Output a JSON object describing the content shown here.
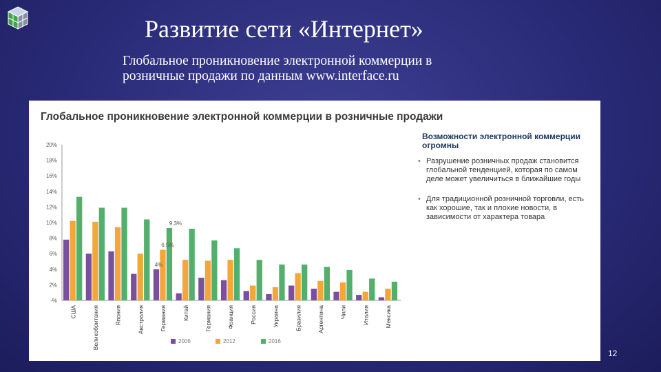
{
  "slide": {
    "title": "Развитие сети «Интернет»",
    "subtitle_lines": [
      "Глобальное проникновение электронной коммерции в",
      "розничные продажи по данным www.interface.ru"
    ],
    "page_number": "12"
  },
  "side_panel": {
    "heading": "Возможности электронной коммерции огромны",
    "bullets": [
      "Разрушение розничных продаж становится глобальной тенденцией, которая по самом деле может увеличиться в ближайшие годы",
      "Для традиционной розничной торговли, есть как хорошие, так и плохие новости, в зависимости от характера товара"
    ]
  },
  "colors": {
    "s2006": "#7b4fa0",
    "s2012": "#f4a63a",
    "s2016": "#52b06c",
    "title_text": "#3a3a3a",
    "side_heading": "#1f3864"
  },
  "chart_data": {
    "type": "bar",
    "title": "Глобальное проникновение электронной коммерции в розничные продажи",
    "categories": [
      "США",
      "Великобритания",
      "Япония",
      "Австралия",
      "Германия",
      "Китай",
      "Германия",
      "Франция",
      "Россия",
      "Украина",
      "Бразилия",
      "Аргентина",
      "Чили",
      "Италия",
      "Мексика"
    ],
    "series": [
      {
        "name": "2006",
        "values": [
          7.8,
          6.0,
          6.3,
          3.4,
          4.0,
          0.9,
          2.9,
          2.6,
          1.2,
          0.8,
          1.9,
          1.5,
          1.1,
          0.7,
          0.4
        ]
      },
      {
        "name": "2012",
        "values": [
          10.2,
          10.1,
          9.4,
          6.0,
          6.5,
          5.2,
          5.1,
          5.2,
          1.9,
          1.7,
          3.5,
          2.5,
          2.3,
          1.1,
          1.5
        ]
      },
      {
        "name": "2016",
        "values": [
          13.3,
          11.9,
          11.9,
          10.4,
          9.3,
          9.2,
          7.7,
          6.7,
          5.2,
          4.6,
          4.6,
          4.3,
          3.9,
          2.8,
          2.4
        ]
      }
    ],
    "annotations": [
      "9.3%",
      "6.5%",
      "4%"
    ],
    "yticks": [
      "20%",
      "18%",
      "16%",
      "14%",
      "12%",
      "10%",
      "8%",
      "6%",
      "4%",
      "2%",
      "-%"
    ],
    "ylim": [
      0,
      20
    ],
    "legend": [
      "2006",
      "2012",
      "2016"
    ],
    "legend_position": "bottom",
    "grid": false
  }
}
